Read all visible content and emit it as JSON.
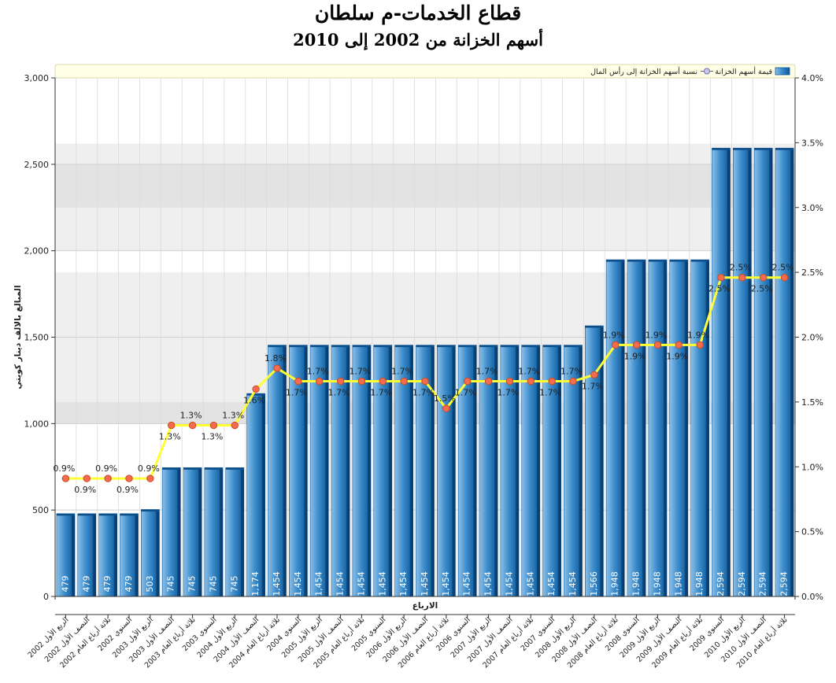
{
  "chart_data": {
    "type": "bar",
    "title": "قطاع الخدمات-م سلطان",
    "subtitle": "أسهم الخزانة من 2002 إلى 2010",
    "xlabel": "الارباع",
    "ylabel": "المبالغ بالالف دينار كويتي",
    "ylim": [
      0,
      3000
    ],
    "y2lim": [
      0.0,
      4.0
    ],
    "y_ticks": [
      "0",
      "500",
      "1,000",
      "1,500",
      "2,000",
      "2,500",
      "3,000"
    ],
    "y2_ticks": [
      "0.0%",
      "0.5%",
      "1.0%",
      "1.5%",
      "2.0%",
      "2.5%",
      "3.0%",
      "3.5%",
      "4.0%"
    ],
    "legend": [
      "قيمة أسهم الخزانة",
      "نسبة أسهم الخزانة إلى رأس المال"
    ],
    "legend_position": "top",
    "categories": [
      "الربع الأول 2002",
      "النصف الأول 2002",
      "ثلاثة أرباع العام 2002",
      "السنوي 2002",
      "الربع الأول 2003",
      "النصف الأول 2003",
      "ثلاثة أرباع العام 2003",
      "السنوي 2003",
      "الربع الأول 2004",
      "النصف الأول 2004",
      "ثلاثة أرباع العام 2004",
      "السنوي 2004",
      "الربع الأول 2005",
      "النصف الأول 2005",
      "ثلاثة أرباع العام 2005",
      "السنوي 2005",
      "الربع الأول 2006",
      "النصف الأول 2006",
      "ثلاثة أرباع العام 2006",
      "السنوي 2006",
      "الربع الأول 2007",
      "النصف الأول 2007",
      "ثلاثة أرباع العام 2007",
      "السنوي 2007",
      "الربع الأول 2008",
      "النصف الأول 2008",
      "ثلاثة أرباع العام 2008",
      "السنوي 2008",
      "الربع الأول 2009",
      "النصف الأول 2009",
      "ثلاثة أرباع العام 2009",
      "السنوي 2009",
      "الربع الأول 2010",
      "النصف الأول 2010",
      "ثلاثة أرباع العام 2010"
    ],
    "series": [
      {
        "name": "قيمة أسهم الخزانة",
        "type": "bar",
        "values": [
          479,
          479,
          479,
          479,
          503,
          745,
          745,
          745,
          745,
          1174,
          1454,
          1454,
          1454,
          1454,
          1454,
          1454,
          1454,
          1454,
          1454,
          1454,
          1454,
          1454,
          1454,
          1454,
          1454,
          1566,
          1948,
          1948,
          1948,
          1948,
          1948,
          2594,
          2594,
          2594,
          2594
        ],
        "labels": [
          "479",
          "479",
          "479",
          "479",
          "503",
          "745",
          "745",
          "745",
          "745",
          "1,174",
          "1,454",
          "1,454",
          "1,454",
          "1,454",
          "1,454",
          "1,454",
          "1,454",
          "1,454",
          "1,454",
          "1,454",
          "1,454",
          "1,454",
          "1,454",
          "1,454",
          "1,454",
          "1,566",
          "1,948",
          "1,948",
          "1,948",
          "1,948",
          "1,948",
          "2,594",
          "2,594",
          "2,594",
          "2,594"
        ]
      },
      {
        "name": "نسبة أسهم الخزانة إلى رأس المال",
        "type": "line",
        "axis": "right",
        "values": [
          0.9,
          0.9,
          0.9,
          0.9,
          0.9,
          1.3,
          1.3,
          1.3,
          1.3,
          1.6,
          1.8,
          1.7,
          1.7,
          1.7,
          1.7,
          1.7,
          1.7,
          1.7,
          1.5,
          1.7,
          1.7,
          1.7,
          1.7,
          1.7,
          1.7,
          1.7,
          1.9,
          1.9,
          1.9,
          1.9,
          1.9,
          2.5,
          2.5,
          2.5,
          2.5
        ],
        "display_values": [
          0.91,
          0.91,
          0.91,
          0.91,
          0.91,
          1.32,
          1.32,
          1.32,
          1.32,
          1.6,
          1.76,
          1.66,
          1.66,
          1.66,
          1.66,
          1.66,
          1.66,
          1.66,
          1.45,
          1.66,
          1.66,
          1.66,
          1.66,
          1.66,
          1.66,
          1.71,
          1.94,
          1.94,
          1.94,
          1.94,
          1.94,
          2.46,
          2.46,
          2.46,
          2.46
        ],
        "labels": [
          "0.9%",
          "0.9%",
          "0.9%",
          "0.9%",
          "0.9%",
          "1.3%",
          "1.3%",
          "1.3%",
          "1.3%",
          "1.6%",
          "1.8%",
          "1.7%",
          "1.7%",
          "1.7%",
          "1.7%",
          "1.7%",
          "1.7%",
          "1.7%",
          "1.5%",
          "1.7%",
          "1.7%",
          "1.7%",
          "1.7%",
          "1.7%",
          "1.7%",
          "1.7%",
          "1.9%",
          "1.9%",
          "1.9%",
          "1.9%",
          "1.9%",
          "2.5%",
          "2.5%",
          "2.5%",
          "2.5%"
        ]
      }
    ],
    "colors": {
      "bar_light": "#7fb6e2",
      "bar_mid": "#2e7fc2",
      "bar_dark": "#0c5a9c",
      "bar_top": "#0d4f8b",
      "line": "#ffff33",
      "marker_fill": "#f26d4f",
      "marker_stroke": "#d14a20",
      "legend_bg": "#ffffe6",
      "band": "#efefef",
      "band_dark": "#e3e3e3"
    }
  }
}
